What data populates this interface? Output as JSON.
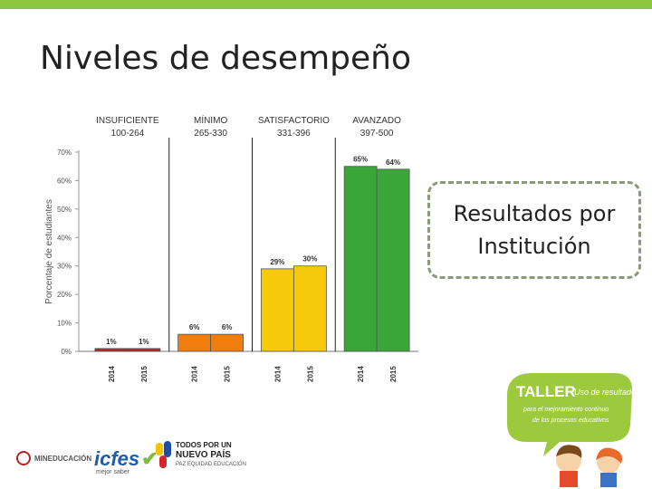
{
  "slide": {
    "title": "Niveles de desempeño",
    "callout_line1": "Resultados por",
    "callout_line2": "Institución"
  },
  "chart_data": {
    "type": "bar",
    "title": "",
    "ylabel": "Porcentaje de estudiantes",
    "ylim": [
      0,
      70
    ],
    "yticks": [
      "0%",
      "10%",
      "20%",
      "30%",
      "40%",
      "50%",
      "60%",
      "70%"
    ],
    "groups": [
      {
        "label": "INSUFICIENTE",
        "range": "100-264",
        "color": "#b02a2a",
        "bars": [
          {
            "year": "2014",
            "value": 1,
            "label": "1%"
          },
          {
            "year": "2015",
            "value": 1,
            "label": "1%"
          }
        ]
      },
      {
        "label": "MÍNIMO",
        "range": "265-330",
        "color": "#f07e0e",
        "bars": [
          {
            "year": "2014",
            "value": 6,
            "label": "6%"
          },
          {
            "year": "2015",
            "value": 6,
            "label": "6%"
          }
        ]
      },
      {
        "label": "SATISFACTORIO",
        "range": "331-396",
        "color": "#f7c90b",
        "bars": [
          {
            "year": "2014",
            "value": 29,
            "label": "29%"
          },
          {
            "year": "2015",
            "value": 30,
            "label": "30%"
          }
        ]
      },
      {
        "label": "AVANZADO",
        "range": "397-500",
        "color": "#3aa63a",
        "bars": [
          {
            "year": "2014",
            "value": 65,
            "label": "65%"
          },
          {
            "year": "2015",
            "value": 64,
            "label": "64%"
          }
        ]
      }
    ]
  },
  "footer": {
    "men_logo": "MINEDUCACIÓN",
    "icfes_logo": "icfes",
    "icfes_sub": "mejor saber",
    "pais_line1": "TODOS POR UN",
    "pais_line2": "NUEVO PAÍS",
    "pais_line3": "PAZ EQUIDAD EDUCACIÓN",
    "taller_line1": "TALLER",
    "taller_line2": "Uso de resultados",
    "taller_line3": "para el mejoramiento continuo",
    "taller_line4": "de los procesos educativos"
  },
  "colors": {
    "accent": "#8cc63f"
  }
}
